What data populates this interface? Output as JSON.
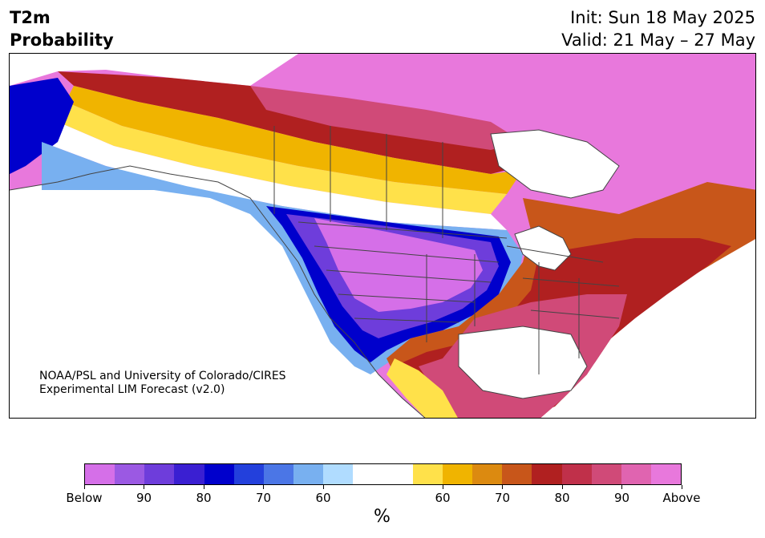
{
  "title": {
    "left_line1": "T2m",
    "left_line2": "Probability",
    "right_line1": "Init: Sun 18 May 2025",
    "right_line2": "Valid: 21 May – 27 May"
  },
  "credit": {
    "line1": "NOAA/PSL and University of Colorado/CIRES",
    "line2": "Experimental LIM Forecast (v2.0)"
  },
  "colorbar": {
    "unit": "%",
    "colors": [
      "#d56fe8",
      "#9b59e3",
      "#6e3ddb",
      "#3a1fd2",
      "#0000cc",
      "#2340dc",
      "#4b76e6",
      "#78b0f0",
      "#b0dcff",
      "#ffffff",
      "#ffffff",
      "#ffe14a",
      "#f0b400",
      "#dc8a10",
      "#c8561a",
      "#b02020",
      "#c0304a",
      "#d04a78",
      "#e064b0",
      "#e878dc"
    ],
    "ticks": [
      {
        "label": "Below",
        "index": 0
      },
      {
        "label": "90",
        "index": 2
      },
      {
        "label": "80",
        "index": 4
      },
      {
        "label": "70",
        "index": 6
      },
      {
        "label": "60",
        "index": 8
      },
      {
        "label": "60",
        "index": 12
      },
      {
        "label": "70",
        "index": 14
      },
      {
        "label": "80",
        "index": 16
      },
      {
        "label": "90",
        "index": 18
      },
      {
        "label": "Above",
        "index": 20
      }
    ]
  },
  "map_colors": {
    "ocean": "#ffffff",
    "border": "#444444",
    "below_strong": "#d56fe8",
    "below_mid": "#6e3ddb",
    "below_weak": "#0000cc",
    "blue_light": "#78b0f0",
    "blue_pale": "#b0dcff",
    "neutral": "#ffffff",
    "above_weak": "#ffe14a",
    "above_orange": "#f0b400",
    "above_dark_orange": "#c8561a",
    "above_red": "#b02020",
    "above_rose": "#d04a78",
    "above_strong": "#e878dc"
  }
}
